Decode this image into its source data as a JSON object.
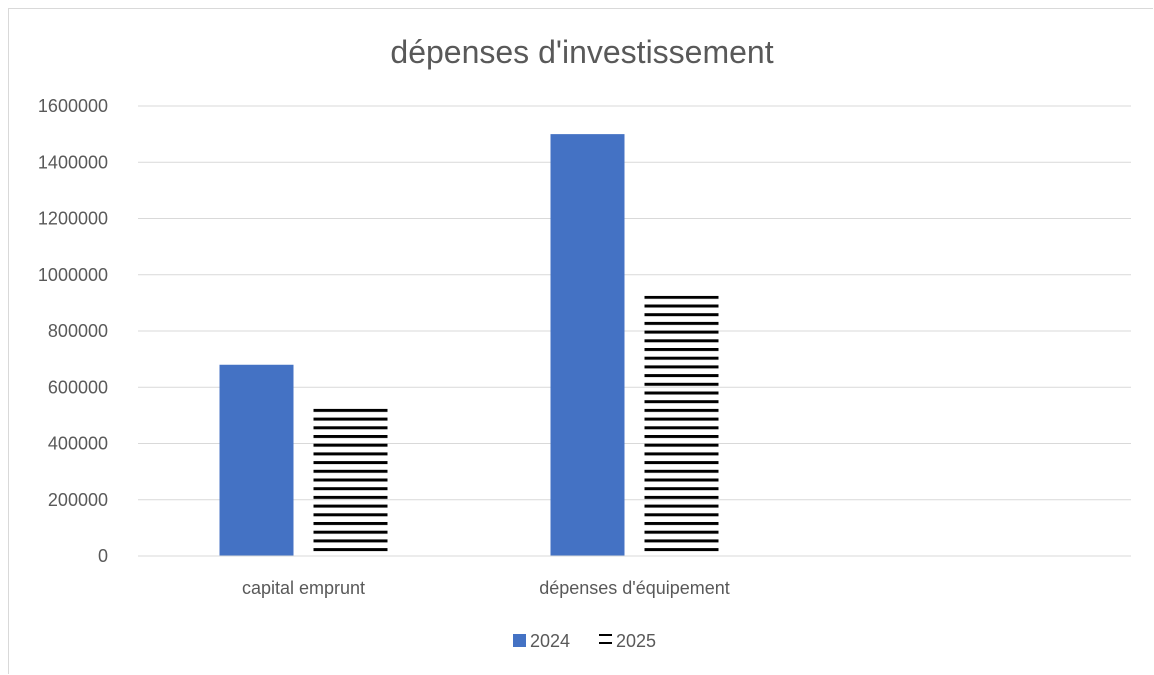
{
  "chart_data": {
    "type": "bar",
    "title": "dépenses d'investissement",
    "xlabel": "",
    "ylabel": "",
    "categories": [
      "capital emprunt",
      "dépenses d'équipement"
    ],
    "category_slots": 3,
    "ylim": [
      0,
      1600000
    ],
    "yticks": [
      0,
      200000,
      400000,
      600000,
      800000,
      1000000,
      1200000,
      1400000,
      1600000
    ],
    "ytick_labels": [
      "0",
      "200000",
      "400000",
      "600000",
      "800000",
      "1000000",
      "1200000",
      "1400000",
      "1600000"
    ],
    "grid": true,
    "legend_position": "bottom",
    "series": [
      {
        "name": "2024",
        "values": [
          680000,
          1500000
        ],
        "color": "#4472c4",
        "fill": "solid"
      },
      {
        "name": "2025",
        "values": [
          530000,
          925000
        ],
        "color": "#000000",
        "fill": "horizontal-stripes"
      }
    ]
  }
}
